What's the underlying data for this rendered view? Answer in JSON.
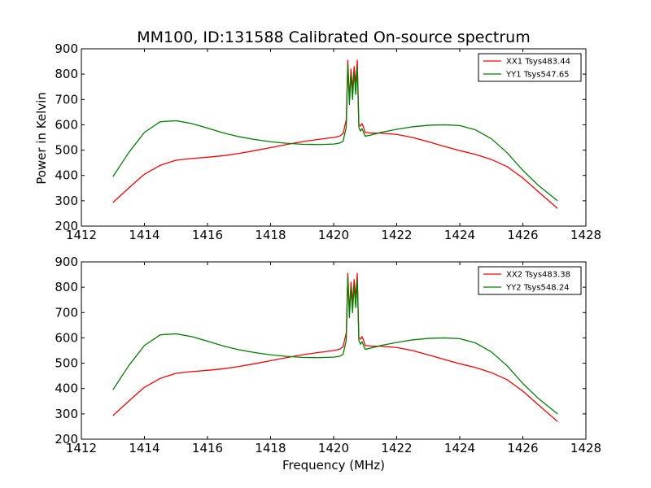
{
  "chart_data": [
    {
      "type": "line",
      "title": "MM100, ID:131588 Calibrated On-source spectrum",
      "xlabel": "",
      "ylabel": "Power in Kelvin",
      "xlim": [
        1412,
        1428
      ],
      "ylim": [
        200,
        900
      ],
      "xticks": [
        1412,
        1414,
        1416,
        1418,
        1420,
        1422,
        1424,
        1426,
        1428
      ],
      "yticks": [
        200,
        300,
        400,
        500,
        600,
        700,
        800,
        900
      ],
      "grid": false,
      "legend_position": "top-right",
      "series": [
        {
          "name": "XX1 Tsys483.44",
          "color": "#ff0000",
          "x": [
            1413.0,
            1413.5,
            1414.0,
            1414.5,
            1415.0,
            1415.5,
            1416.0,
            1416.5,
            1417.0,
            1417.5,
            1418.0,
            1418.5,
            1419.0,
            1419.5,
            1420.0,
            1420.1,
            1420.2,
            1420.3,
            1420.4,
            1420.45,
            1420.5,
            1420.55,
            1420.6,
            1420.65,
            1420.7,
            1420.75,
            1420.8,
            1420.85,
            1420.9,
            1420.95,
            1421.0,
            1421.2,
            1421.5,
            1422.0,
            1422.5,
            1423.0,
            1423.5,
            1424.0,
            1424.5,
            1425.0,
            1425.5,
            1426.0,
            1426.5,
            1427.1
          ],
          "y": [
            293,
            350,
            405,
            440,
            460,
            467,
            472,
            478,
            487,
            498,
            510,
            522,
            533,
            542,
            550,
            553,
            556,
            565,
            620,
            855,
            700,
            820,
            740,
            830,
            760,
            855,
            600,
            595,
            605,
            590,
            570,
            567,
            567,
            562,
            550,
            533,
            515,
            498,
            483,
            463,
            435,
            390,
            335,
            270
          ]
        },
        {
          "name": "YY1 Tsys547.65",
          "color": "#008000",
          "x": [
            1413.0,
            1413.5,
            1414.0,
            1414.5,
            1415.0,
            1415.5,
            1416.0,
            1416.5,
            1417.0,
            1417.5,
            1418.0,
            1418.5,
            1419.0,
            1419.5,
            1420.0,
            1420.1,
            1420.2,
            1420.3,
            1420.4,
            1420.45,
            1420.5,
            1420.55,
            1420.6,
            1420.65,
            1420.7,
            1420.75,
            1420.8,
            1420.85,
            1420.9,
            1420.95,
            1421.0,
            1421.2,
            1421.5,
            1422.0,
            1422.5,
            1423.0,
            1423.5,
            1424.0,
            1424.5,
            1425.0,
            1425.5,
            1426.0,
            1426.5,
            1427.1
          ],
          "y": [
            395,
            490,
            570,
            612,
            616,
            605,
            587,
            568,
            553,
            542,
            533,
            527,
            523,
            522,
            524,
            526,
            528,
            535,
            590,
            840,
            680,
            800,
            700,
            810,
            720,
            830,
            590,
            575,
            585,
            570,
            555,
            560,
            570,
            582,
            592,
            598,
            600,
            597,
            580,
            545,
            490,
            420,
            360,
            300
          ]
        }
      ]
    },
    {
      "type": "line",
      "title": "",
      "xlabel": "Frequency (MHz)",
      "ylabel": "",
      "xlim": [
        1412,
        1428
      ],
      "ylim": [
        200,
        900
      ],
      "xticks": [
        1412,
        1414,
        1416,
        1418,
        1420,
        1422,
        1424,
        1426,
        1428
      ],
      "yticks": [
        200,
        300,
        400,
        500,
        600,
        700,
        800,
        900
      ],
      "grid": false,
      "legend_position": "top-right",
      "series": [
        {
          "name": "XX2 Tsys483.38",
          "color": "#ff0000",
          "x": [
            1413.0,
            1413.5,
            1414.0,
            1414.5,
            1415.0,
            1415.5,
            1416.0,
            1416.5,
            1417.0,
            1417.5,
            1418.0,
            1418.5,
            1419.0,
            1419.5,
            1420.0,
            1420.1,
            1420.2,
            1420.3,
            1420.4,
            1420.45,
            1420.5,
            1420.55,
            1420.6,
            1420.65,
            1420.7,
            1420.75,
            1420.8,
            1420.85,
            1420.9,
            1420.95,
            1421.0,
            1421.2,
            1421.5,
            1422.0,
            1422.5,
            1423.0,
            1423.5,
            1424.0,
            1424.5,
            1425.0,
            1425.5,
            1426.0,
            1426.5,
            1427.1
          ],
          "y": [
            293,
            350,
            405,
            440,
            460,
            467,
            472,
            478,
            487,
            498,
            510,
            522,
            533,
            542,
            550,
            553,
            556,
            565,
            620,
            855,
            700,
            820,
            740,
            830,
            760,
            855,
            600,
            595,
            605,
            590,
            570,
            567,
            567,
            562,
            550,
            533,
            515,
            498,
            483,
            463,
            435,
            390,
            335,
            270
          ]
        },
        {
          "name": "YY2 Tsys548.24",
          "color": "#008000",
          "x": [
            1413.0,
            1413.5,
            1414.0,
            1414.5,
            1415.0,
            1415.5,
            1416.0,
            1416.5,
            1417.0,
            1417.5,
            1418.0,
            1418.5,
            1419.0,
            1419.5,
            1420.0,
            1420.1,
            1420.2,
            1420.3,
            1420.4,
            1420.45,
            1420.5,
            1420.55,
            1420.6,
            1420.65,
            1420.7,
            1420.75,
            1420.8,
            1420.85,
            1420.9,
            1420.95,
            1421.0,
            1421.2,
            1421.5,
            1422.0,
            1422.5,
            1423.0,
            1423.5,
            1424.0,
            1424.5,
            1425.0,
            1425.5,
            1426.0,
            1426.5,
            1427.1
          ],
          "y": [
            395,
            490,
            570,
            612,
            616,
            605,
            587,
            568,
            553,
            542,
            533,
            527,
            523,
            522,
            524,
            526,
            528,
            535,
            590,
            840,
            680,
            800,
            700,
            810,
            720,
            830,
            590,
            575,
            585,
            570,
            555,
            560,
            570,
            582,
            592,
            598,
            600,
            597,
            580,
            545,
            490,
            420,
            360,
            300
          ]
        }
      ]
    }
  ]
}
